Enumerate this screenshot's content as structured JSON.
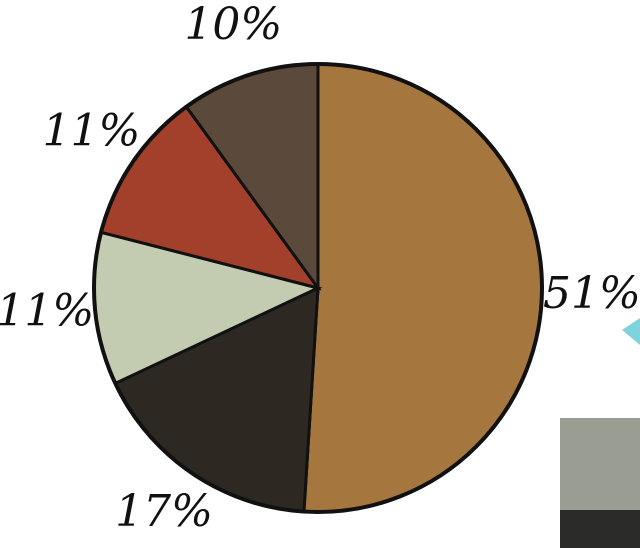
{
  "chart_data": {
    "type": "pie",
    "values": [
      51,
      17,
      11,
      11,
      10
    ],
    "value_labels": [
      "51%",
      "17%",
      "11%",
      "11%",
      "10%"
    ],
    "colors": [
      "#a5773f",
      "#2e2822",
      "#c3cbb0",
      "#a3402b",
      "#5b4a3b"
    ]
  }
}
